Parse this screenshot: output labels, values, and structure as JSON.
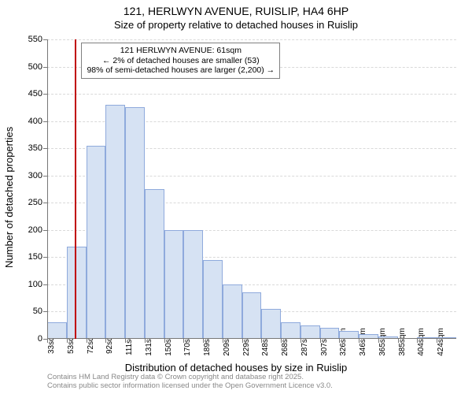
{
  "title_line1": "121, HERLWYN AVENUE, RUISLIP, HA4 6HP",
  "title_line2": "Size of property relative to detached houses in Ruislip",
  "y_axis_label": "Number of detached properties",
  "x_axis_label": "Distribution of detached houses by size in Ruislip",
  "footer_line1": "Contains HM Land Registry data © Crown copyright and database right 2025.",
  "footer_line2": "Contains public sector information licensed under the Open Government Licence v3.0.",
  "annotation": {
    "line1": "121 HERLWYN AVENUE: 61sqm",
    "line2": "← 2% of detached houses are smaller (53)",
    "line3": "98% of semi-detached houses are larger (2,200) →"
  },
  "chart": {
    "type": "histogram",
    "background_color": "#ffffff",
    "grid_color": "#d9d9d9",
    "axis_color": "#777777",
    "bar_fill": "#d6e2f3",
    "bar_border": "#8faadc",
    "marker_color": "#c00000",
    "text_color": "#000000",
    "footer_color": "#888888",
    "ylim": [
      0,
      550
    ],
    "ytick_step": 50,
    "title_fontsize": 14,
    "subtitle_fontsize": 13,
    "axis_label_fontsize": 13,
    "tick_fontsize": 11,
    "xtick_fontsize": 10,
    "annotation_fontsize": 10.5,
    "footer_fontsize": 9.5,
    "bar_width_ratio": 1.0,
    "marker_at_sqm": 61,
    "x_start": 33,
    "x_step": 19.55,
    "categories": [
      "33sqm",
      "53sqm",
      "72sqm",
      "92sqm",
      "111sqm",
      "131sqm",
      "150sqm",
      "170sqm",
      "189sqm",
      "209sqm",
      "229sqm",
      "248sqm",
      "268sqm",
      "287sqm",
      "307sqm",
      "326sqm",
      "346sqm",
      "365sqm",
      "385sqm",
      "404sqm",
      "424sqm"
    ],
    "values": [
      30,
      170,
      355,
      430,
      425,
      275,
      200,
      200,
      145,
      100,
      85,
      55,
      30,
      25,
      20,
      15,
      8,
      5,
      0,
      2,
      2
    ]
  }
}
